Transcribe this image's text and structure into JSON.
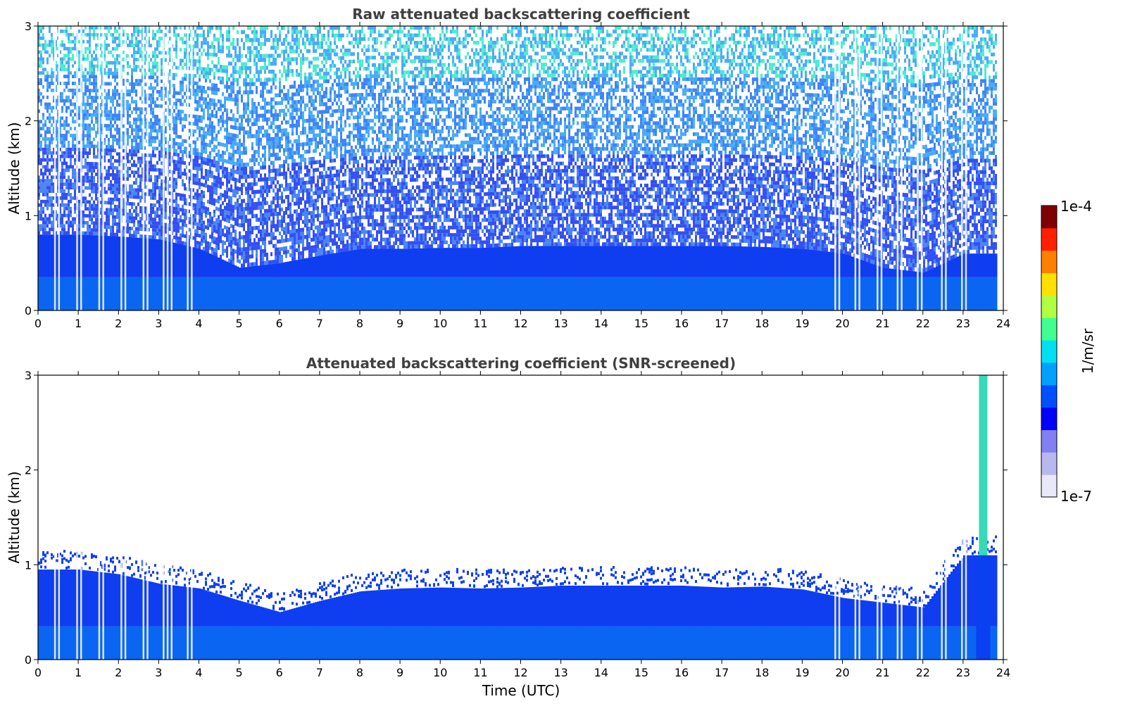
{
  "chart_data": [
    {
      "type": "heatmap",
      "title": "Raw attenuated backscattering coefficient",
      "xlabel": "",
      "ylabel": "Altitude (km)",
      "xlim": [
        0,
        24
      ],
      "ylim": [
        0,
        3
      ],
      "x_ticks": [
        "0",
        "1",
        "2",
        "3",
        "4",
        "5",
        "6",
        "7",
        "8",
        "9",
        "10",
        "11",
        "12",
        "13",
        "14",
        "15",
        "16",
        "17",
        "18",
        "19",
        "20",
        "21",
        "22",
        "23",
        "24"
      ],
      "y_ticks": [
        "0",
        "1",
        "2",
        "3"
      ],
      "x": [
        0,
        1,
        2,
        3,
        4,
        5,
        6,
        7,
        8,
        9,
        10,
        11,
        12,
        13,
        14,
        15,
        16,
        17,
        18,
        19,
        20,
        21,
        22,
        23
      ],
      "layer_top_km": [
        0.8,
        0.8,
        0.78,
        0.75,
        0.65,
        0.45,
        0.5,
        0.58,
        0.65,
        0.65,
        0.66,
        0.66,
        0.68,
        0.68,
        0.68,
        0.68,
        0.68,
        0.68,
        0.67,
        0.65,
        0.6,
        0.45,
        0.4,
        0.6
      ],
      "noise_level": "high",
      "white_stripe_times": [
        0.4,
        0.5,
        0.95,
        1.05,
        1.5,
        1.6,
        2.05,
        2.15,
        2.6,
        2.7,
        3.1,
        3.2,
        3.3,
        3.7,
        3.8,
        19.8,
        19.9,
        20.3,
        20.4,
        20.85,
        20.95,
        21.35,
        21.45,
        21.85,
        21.95,
        22.45,
        22.55,
        22.95,
        23.05
      ],
      "x_extent": [
        0,
        23.8
      ]
    },
    {
      "type": "heatmap",
      "title": "Attenuated backscattering coefficient (SNR-screened)",
      "xlabel": "Time (UTC)",
      "ylabel": "Altitude (km)",
      "xlim": [
        0,
        24
      ],
      "ylim": [
        0,
        3
      ],
      "x_ticks": [
        "0",
        "1",
        "2",
        "3",
        "4",
        "5",
        "6",
        "7",
        "8",
        "9",
        "10",
        "11",
        "12",
        "13",
        "14",
        "15",
        "16",
        "17",
        "18",
        "19",
        "20",
        "21",
        "22",
        "23",
        "24"
      ],
      "y_ticks": [
        "0",
        "1",
        "2",
        "3"
      ],
      "x": [
        0,
        1,
        2,
        3,
        4,
        5,
        6,
        7,
        8,
        9,
        10,
        11,
        12,
        13,
        14,
        15,
        16,
        17,
        18,
        19,
        20,
        21,
        22,
        23
      ],
      "layer_top_km": [
        0.95,
        0.95,
        0.9,
        0.8,
        0.75,
        0.62,
        0.5,
        0.62,
        0.72,
        0.75,
        0.76,
        0.75,
        0.76,
        0.78,
        0.78,
        0.78,
        0.78,
        0.76,
        0.77,
        0.74,
        0.65,
        0.6,
        0.55,
        1.1
      ],
      "plume": {
        "x": 23.5,
        "top_km": 3.0
      },
      "noise_level": "screened",
      "white_stripe_times": [
        0.4,
        0.5,
        0.95,
        1.05,
        1.5,
        1.6,
        2.05,
        2.15,
        2.6,
        2.7,
        3.1,
        3.2,
        3.3,
        3.7,
        3.8,
        19.8,
        19.9,
        20.3,
        20.4,
        20.85,
        20.95,
        21.35,
        21.45,
        21.85,
        21.95,
        22.45,
        22.55,
        22.95,
        23.05
      ],
      "x_extent": [
        0,
        23.8
      ]
    }
  ],
  "colorbar": {
    "label": "1/m/sr",
    "max_label": "1e-4",
    "min_label": "1e-7",
    "colormap": "jet",
    "colors": [
      "#e8e8f8",
      "#b8b8f0",
      "#8080f0",
      "#0000ff",
      "#0050ff",
      "#00a0ff",
      "#00e0f0",
      "#40ff90",
      "#b0ff40",
      "#ffe000",
      "#ff8000",
      "#ff2000",
      "#800000"
    ]
  }
}
